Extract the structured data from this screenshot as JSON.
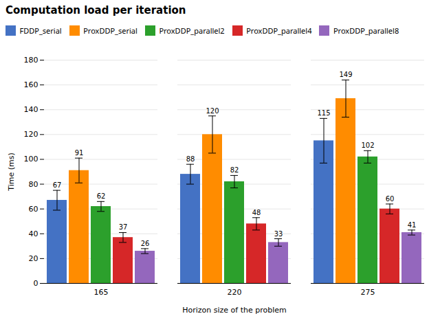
{
  "chart_data": {
    "type": "bar",
    "title": "Computation load per iteration",
    "xlabel": "Horizon size of the problem",
    "ylabel": "Time (ms)",
    "categories": [
      165,
      220,
      275
    ],
    "series": [
      {
        "name": "FDDP_serial",
        "color": "#4472C4",
        "values": [
          67,
          88,
          115
        ],
        "errors": [
          8,
          8,
          18
        ]
      },
      {
        "name": "ProxDDP_serial",
        "color": "#FF8C00",
        "values": [
          91,
          120,
          149
        ],
        "errors": [
          10,
          15,
          15
        ]
      },
      {
        "name": "ProxDDP_parallel2",
        "color": "#2CA02C",
        "values": [
          62,
          82,
          102
        ],
        "errors": [
          4,
          5,
          5
        ]
      },
      {
        "name": "ProxDDP_parallel4",
        "color": "#D62728",
        "values": [
          37,
          48,
          60
        ],
        "errors": [
          4,
          5,
          4
        ]
      },
      {
        "name": "ProxDDP_parallel8",
        "color": "#9467BD",
        "values": [
          26,
          33,
          41
        ],
        "errors": [
          2,
          3,
          2
        ]
      }
    ],
    "ylim": [
      0,
      180
    ],
    "yticks": [
      0,
      20,
      40,
      60,
      80,
      100,
      120,
      140,
      160,
      180
    ],
    "grid": true,
    "legend": "upper left",
    "data_labels": true
  }
}
